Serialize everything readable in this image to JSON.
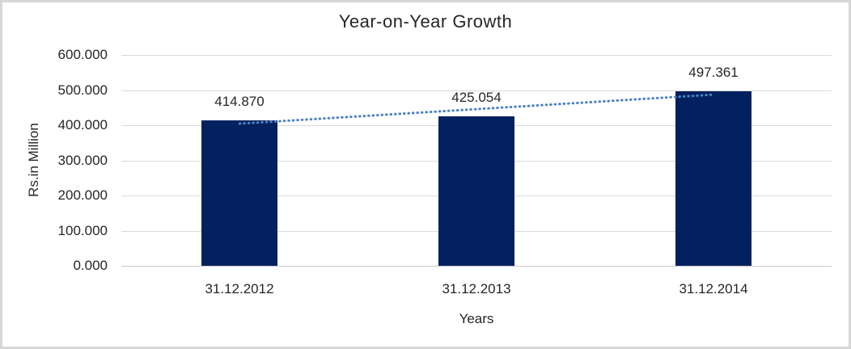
{
  "window": {
    "background": "#ffffff",
    "border_color": "#d6d6d6"
  },
  "chart_data": {
    "type": "bar",
    "title": "Year-on-Year Growth",
    "categories": [
      "31.12.2012",
      "31.12.2013",
      "31.12.2014"
    ],
    "values": [
      414.87,
      425.054,
      497.361
    ],
    "data_labels": [
      "414.870",
      "425.054",
      "497.361"
    ],
    "xlabel": "Years",
    "ylabel": "Rs.in Million",
    "ylim": [
      0,
      600
    ],
    "ytick_step": 100,
    "ytick_labels": [
      "0.000",
      "100.000",
      "200.000",
      "300.000",
      "400.000",
      "500.000",
      "600.000"
    ],
    "grid": true,
    "legend": "none",
    "trendline": {
      "type": "linear",
      "style": "dotted",
      "color": "#4d82c6"
    },
    "colors": {
      "bar": "#02215e",
      "gridline": "#d9d9d9",
      "axis_line": "#c9c9c9",
      "text": "#262626"
    }
  }
}
